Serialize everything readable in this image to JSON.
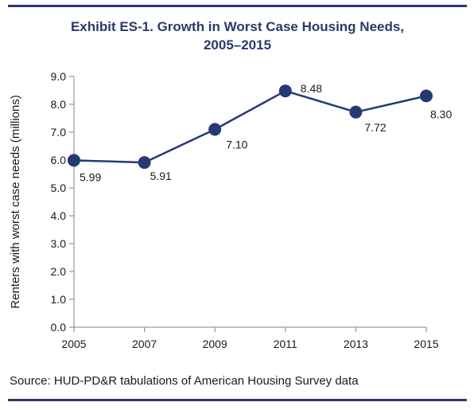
{
  "title_line1": "Exhibit ES-1. Growth in Worst Case Housing Needs,",
  "title_line2": "2005–2015",
  "source": "Source: HUD-PD&R tabulations of American Housing Survey data",
  "colors": {
    "rule": "#2b3a6b",
    "title": "#2b3a6b",
    "series": "#253a72",
    "axis": "#808080"
  },
  "chart_data": {
    "type": "line",
    "title": "Exhibit ES-1. Growth in Worst Case Housing Needs, 2005–2015",
    "xlabel": "",
    "ylabel": "Renters with worst case needs (millions)",
    "x": [
      "2005",
      "2007",
      "2009",
      "2011",
      "2013",
      "2015"
    ],
    "series": [
      {
        "values": [
          5.99,
          5.91,
          7.1,
          8.48,
          7.72,
          8.3
        ],
        "labels": [
          "5.99",
          "5.91",
          "7.10",
          "8.48",
          "7.72",
          "8.30"
        ]
      }
    ],
    "ylim": [
      0,
      9
    ],
    "yticks": [
      "0.0",
      "1.0",
      "2.0",
      "3.0",
      "4.0",
      "5.0",
      "6.0",
      "7.0",
      "8.0",
      "9.0"
    ],
    "grid": false,
    "legend": "none"
  }
}
